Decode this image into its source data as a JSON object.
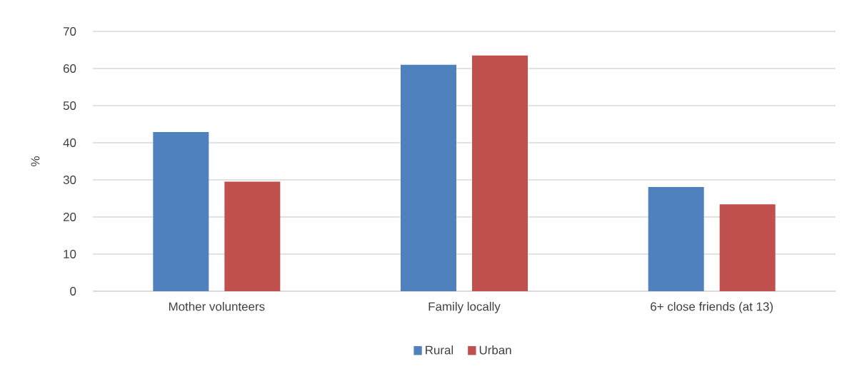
{
  "chart_data": {
    "type": "bar",
    "ylabel": "%",
    "categories": [
      "Mother volunteers",
      "Family locally",
      "6+ close friends (at 13)"
    ],
    "series": [
      {
        "name": "Rural",
        "color": "#4f81bd",
        "values": [
          42.9,
          61.0,
          28.1
        ]
      },
      {
        "name": "Urban",
        "color": "#c0504d",
        "values": [
          29.5,
          63.5,
          23.4
        ]
      }
    ],
    "ylim": [
      0,
      70
    ],
    "yticks": [
      0,
      10,
      20,
      30,
      40,
      50,
      60,
      70
    ],
    "grid": "y",
    "legend": "bottom"
  }
}
